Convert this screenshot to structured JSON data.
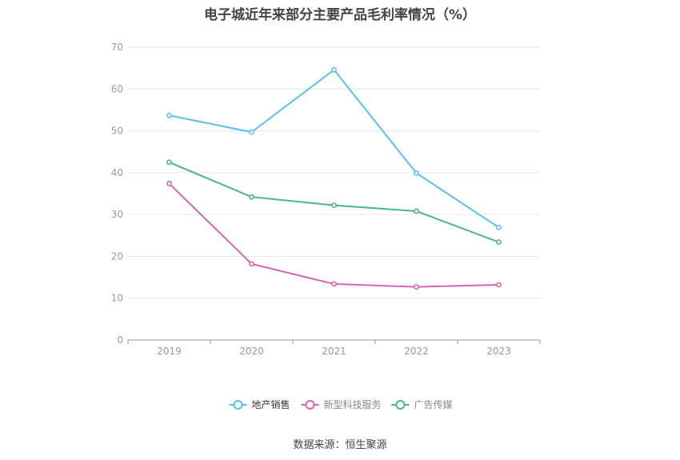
{
  "title": "电子城近年来部分主要产品毛利率情况（%）",
  "source": "数据来源：恒生聚源",
  "chart_data": {
    "type": "line",
    "title": "电子城近年来部分主要产品毛利率情况（%）",
    "x": [
      "2019",
      "2020",
      "2021",
      "2022",
      "2023"
    ],
    "ylim": [
      0,
      70
    ],
    "yticks": [
      0,
      10,
      20,
      30,
      40,
      50,
      60,
      70
    ],
    "grid": true,
    "legend_position": "bottom",
    "series": [
      {
        "name": "地产销售",
        "color": "#5bc0eb",
        "values": [
          53.7,
          49.7,
          64.6,
          39.9,
          26.9
        ]
      },
      {
        "name": "新型科技服务",
        "color": "#d366b0",
        "values": [
          37.4,
          18.2,
          13.4,
          12.7,
          13.2
        ]
      },
      {
        "name": "广告传媒",
        "color": "#4db391",
        "values": [
          42.5,
          34.2,
          32.2,
          30.8,
          23.4
        ]
      }
    ]
  }
}
